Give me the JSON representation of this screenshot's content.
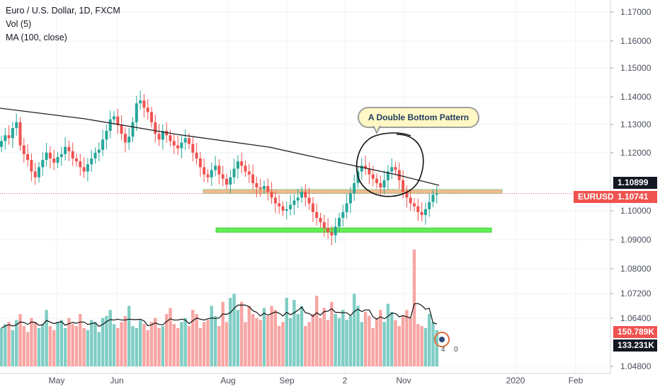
{
  "legend": {
    "symbol_line": "Euro / U.S. Dollar, 1D, FXCM",
    "volume_line": "Vol (5)",
    "ma_line": "MA (100, close)"
  },
  "price_axis": {
    "ticks": [
      "1.17000",
      "1.16000",
      "1.15000",
      "1.14000",
      "1.13000",
      "1.12000",
      "1.10000",
      "1.09000",
      "1.08000",
      "1.07200",
      "1.06400",
      "1.04800"
    ],
    "last_price_label": "1.10899",
    "symbol_price_label": "1.10741",
    "symbol_label": "EURUSD",
    "volume_label": "150.789K",
    "volume_ma_label": "133.231K"
  },
  "time_axis": {
    "ticks": [
      "May",
      "Jun",
      "Aug",
      "Sep",
      "2",
      "Nov",
      "2020",
      "Feb"
    ]
  },
  "annotation": {
    "callout_text": "A Double Bottom Pattern"
  },
  "overlay_marks": [
    "4",
    "0"
  ],
  "colors": {
    "up": "#26a69a",
    "down": "#ef5350",
    "up_volume": "#7fcdc4",
    "down_volume": "#f7a5a3",
    "ma": "#222222",
    "resistance_fill": "#f4b183",
    "resistance_border": "#8fd18f",
    "support": "#66ee55",
    "last_price": "#131722",
    "symbol_tag": "#ef5350"
  },
  "chart_data": {
    "type": "candlestick",
    "title": "Euro / U.S. Dollar, 1D, FXCM",
    "x_range": [
      "2019-04-15",
      "2020-02-20"
    ],
    "ylim": [
      1.086,
      1.173
    ],
    "price_close_series": [
      1.1255,
      1.1275,
      1.1265,
      1.13,
      1.132,
      1.124,
      1.121,
      1.119,
      1.115,
      1.113,
      1.1165,
      1.119,
      1.1215,
      1.1195,
      1.118,
      1.12,
      1.121,
      1.1235,
      1.122,
      1.1195,
      1.1185,
      1.1165,
      1.115,
      1.1175,
      1.1195,
      1.1215,
      1.1225,
      1.126,
      1.129,
      1.133,
      1.134,
      1.131,
      1.128,
      1.125,
      1.127,
      1.132,
      1.1385,
      1.1395,
      1.137,
      1.1355,
      1.132,
      1.128,
      1.126,
      1.129,
      1.1275,
      1.1255,
      1.124,
      1.123,
      1.125,
      1.1265,
      1.1245,
      1.1215,
      1.1195,
      1.1165,
      1.114,
      1.113,
      1.1155,
      1.117,
      1.114,
      1.1125,
      1.1105,
      1.113,
      1.116,
      1.1185,
      1.117,
      1.115,
      1.114,
      1.111,
      1.1095,
      1.109,
      1.11,
      1.108,
      1.106,
      1.104,
      1.103,
      1.1015,
      1.102,
      1.1035,
      1.105,
      1.106,
      1.108,
      1.106,
      1.104,
      1.101,
      1.099,
      1.0975,
      1.0955,
      1.094,
      1.093,
      1.096,
      1.099,
      1.101,
      1.104,
      1.1075,
      1.111,
      1.115,
      1.117,
      1.116,
      1.114,
      1.1125,
      1.111,
      1.1095,
      1.112,
      1.115,
      1.1165,
      1.1155,
      1.112,
      1.108,
      1.106,
      1.104,
      1.103,
      1.101,
      1.1,
      1.102,
      1.1045,
      1.107,
      1.1074
    ],
    "ma_100": [
      1.1355,
      1.127,
      1.118,
      1.109
    ],
    "volume_series": [
      95,
      105,
      110,
      90,
      115,
      130,
      100,
      85,
      120,
      110,
      95,
      105,
      140,
      100,
      90,
      110,
      115,
      95,
      120,
      105,
      100,
      130,
      95,
      90,
      115,
      110,
      85,
      120,
      125,
      140,
      105,
      95,
      110,
      125,
      150,
      100,
      95,
      115,
      105,
      90,
      110,
      120,
      95,
      100,
      130,
      145,
      105,
      95,
      110,
      120,
      100,
      140,
      130,
      95,
      110,
      115,
      150,
      125,
      100,
      160,
      110,
      170,
      180,
      140,
      160,
      110,
      150,
      130,
      120,
      115,
      145,
      125,
      150,
      140,
      100,
      110,
      170,
      120,
      165,
      130,
      150,
      100,
      110,
      130,
      175,
      120,
      145,
      115,
      160,
      130,
      120,
      140,
      115,
      125,
      180,
      150,
      110,
      135,
      125,
      95,
      120,
      140,
      110,
      155,
      135,
      115,
      100,
      125,
      140,
      120,
      290,
      105,
      100,
      95,
      130,
      110,
      90
    ],
    "vol_ma": [
      140,
      125,
      150,
      135
    ],
    "price_levels": {
      "last_price": 1.10899,
      "symbol_price": 1.10741,
      "resistance_zone": [
        1.1075,
        1.1088
      ],
      "support_level": 1.0948
    },
    "annotations": [
      "A Double Bottom Pattern"
    ]
  }
}
